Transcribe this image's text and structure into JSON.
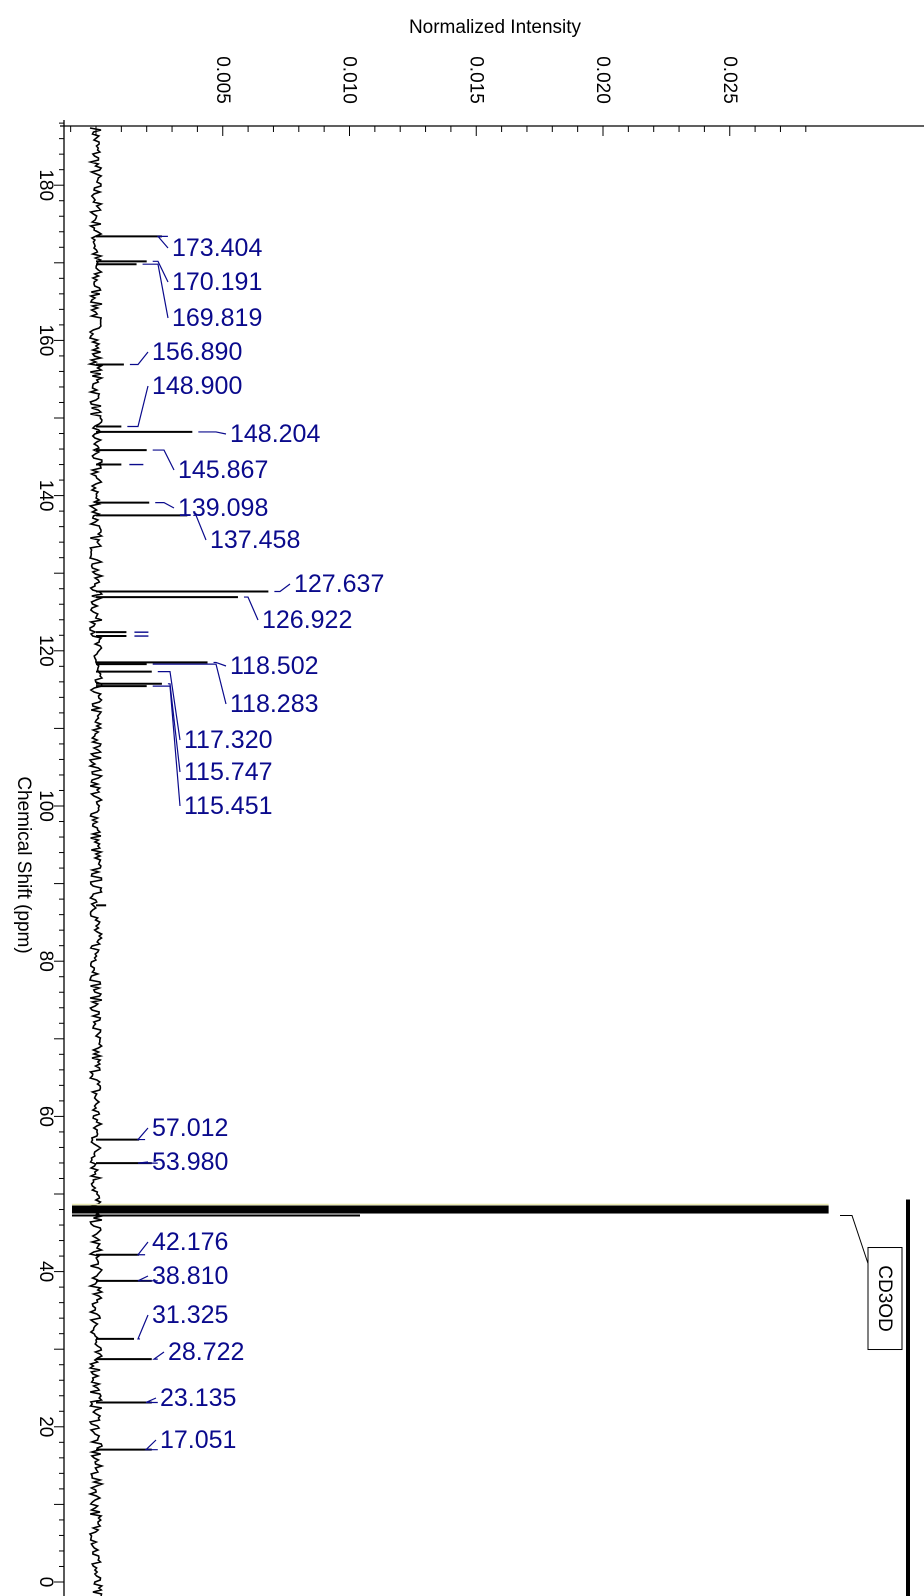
{
  "chart_data": {
    "type": "line",
    "orientation": "rotated",
    "xlabel": "Normalized Intensity",
    "ylabel": "Chemical Shift (ppm)",
    "x_ticks": [
      "0.005",
      "0.010",
      "0.015",
      "0.020",
      "0.025"
    ],
    "x_tick_values": [
      0.005,
      0.01,
      0.015,
      0.02,
      0.025
    ],
    "y_ticks": [
      "180",
      "160",
      "140",
      "120",
      "100",
      "80",
      "60",
      "40",
      "20",
      "0"
    ],
    "y_tick_values": [
      180,
      160,
      140,
      120,
      100,
      80,
      60,
      40,
      20,
      0
    ],
    "xlim": [
      0,
      0.029
    ],
    "ylim": [
      0,
      189
    ],
    "peaks": [
      {
        "label": "173.404",
        "shift": 173.404,
        "intensity": 0.0026
      },
      {
        "label": "170.191",
        "shift": 170.191,
        "intensity": 0.002
      },
      {
        "label": "169.819",
        "shift": 169.819,
        "intensity": 0.0016
      },
      {
        "label": "156.890",
        "shift": 156.89,
        "intensity": 0.0011
      },
      {
        "label": "148.900",
        "shift": 148.9,
        "intensity": 0.001
      },
      {
        "label": "148.204",
        "shift": 148.204,
        "intensity": 0.0038
      },
      {
        "label": "145.867",
        "shift": 145.867,
        "intensity": 0.002
      },
      {
        "label": "139.098",
        "shift": 139.098,
        "intensity": 0.0021
      },
      {
        "label": "137.458",
        "shift": 137.458,
        "intensity": 0.0036
      },
      {
        "label": "127.637",
        "shift": 127.637,
        "intensity": 0.0068
      },
      {
        "label": "126.922",
        "shift": 126.922,
        "intensity": 0.0056
      },
      {
        "label": "118.502",
        "shift": 118.502,
        "intensity": 0.0044
      },
      {
        "label": "118.283",
        "shift": 118.283,
        "intensity": 0.002
      },
      {
        "label": "117.320",
        "shift": 117.32,
        "intensity": 0.0022
      },
      {
        "label": "115.747",
        "shift": 115.747,
        "intensity": 0.0026
      },
      {
        "label": "115.451",
        "shift": 115.451,
        "intensity": 0.002
      },
      {
        "label": "57.012",
        "shift": 57.012,
        "intensity": 0.0017
      },
      {
        "label": "53.980",
        "shift": 53.98,
        "intensity": 0.0022
      },
      {
        "label": "42.176",
        "shift": 42.176,
        "intensity": 0.0017
      },
      {
        "label": "38.810",
        "shift": 38.81,
        "intensity": 0.0022
      },
      {
        "label": "31.325",
        "shift": 31.325,
        "intensity": 0.0015
      },
      {
        "label": "28.722",
        "shift": 28.722,
        "intensity": 0.0022
      },
      {
        "label": "23.135",
        "shift": 23.135,
        "intensity": 0.0022
      },
      {
        "label": "17.051",
        "shift": 17.051,
        "intensity": 0.0022
      }
    ],
    "unlabeled_peaks": [
      {
        "shift": 144.0,
        "intensity": 0.001
      },
      {
        "shift": 122.4,
        "intensity": 0.0012
      },
      {
        "shift": 121.9,
        "intensity": 0.0012
      },
      {
        "shift": 87.2,
        "intensity": 0.0004
      }
    ],
    "solvent": {
      "label": "CD3OD",
      "shift": 48.0,
      "intensity": 0.0289
    },
    "colors": {
      "spectrum": "#000000",
      "peak_label": "#0a0a8c",
      "solvent_highlight": "#e8e8b0"
    }
  }
}
